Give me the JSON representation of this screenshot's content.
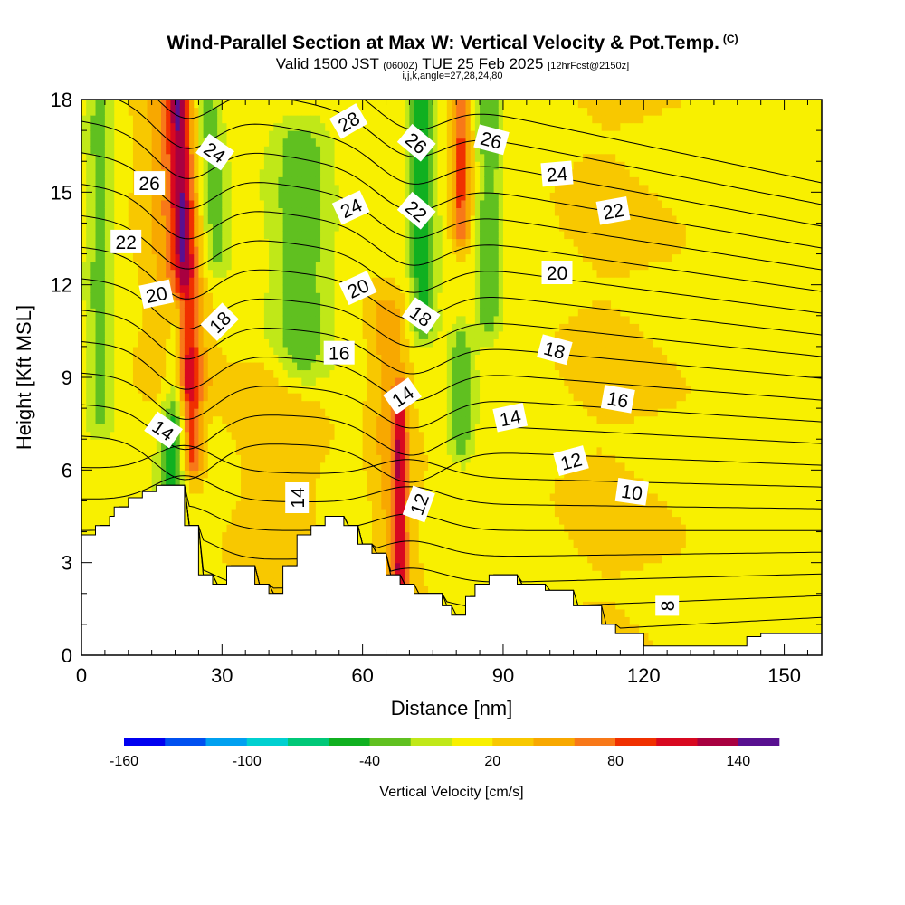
{
  "header": {
    "title": "Wind-Parallel Section at Max W: Vertical Velocity & Pot.Temp.",
    "title_suffix": "(C)",
    "valid_prefix": "Valid 1500 JST",
    "valid_z": "(0600Z)",
    "valid_date": "TUE 25 Feb 2025",
    "valid_fcst": "[12hrFcst@2150z]",
    "grid_info": "i,j,k,angle=27,28,24,80"
  },
  "chart_data": {
    "type": "heatmap",
    "xlabel": "Distance [nm]",
    "ylabel": "Height [Kft MSL]",
    "xlim": [
      0,
      158
    ],
    "ylim": [
      0,
      18
    ],
    "xticks": [
      0,
      30,
      60,
      90,
      120,
      150
    ],
    "yticks": [
      0,
      3,
      6,
      9,
      12,
      15,
      18
    ],
    "colorbar": {
      "label": "Vertical Velocity [cm/s]",
      "min": -160,
      "max": 160,
      "step": 20,
      "tick_values": [
        -160,
        -100,
        -40,
        20,
        80,
        140
      ],
      "tick_labels": [
        "-160",
        "-100",
        "-40",
        "20",
        "80",
        "140"
      ],
      "colors": [
        "#0000f0",
        "#0050f0",
        "#00a0f0",
        "#00d0d0",
        "#00c878",
        "#10b020",
        "#60c020",
        "#c0e818",
        "#f8f000",
        "#f8c800",
        "#f8a800",
        "#f87818",
        "#f03000",
        "#d80820",
        "#a80040",
        "#581090"
      ]
    },
    "terrain_kft": [
      [
        0,
        3.9
      ],
      [
        3,
        3.9
      ],
      [
        3,
        4.2
      ],
      [
        6,
        4.2
      ],
      [
        6,
        4.5
      ],
      [
        7,
        4.5
      ],
      [
        7,
        4.8
      ],
      [
        10,
        4.8
      ],
      [
        10,
        5.1
      ],
      [
        13,
        5.1
      ],
      [
        13,
        5.3
      ],
      [
        16,
        5.3
      ],
      [
        16,
        5.5
      ],
      [
        22,
        5.5
      ],
      [
        22,
        4.2
      ],
      [
        25,
        4.2
      ],
      [
        25,
        2.6
      ],
      [
        28,
        2.6
      ],
      [
        28,
        2.3
      ],
      [
        31,
        2.3
      ],
      [
        31,
        2.9
      ],
      [
        37,
        2.9
      ],
      [
        37,
        2.3
      ],
      [
        40,
        2.3
      ],
      [
        40,
        2.0
      ],
      [
        43,
        2.0
      ],
      [
        43,
        2.9
      ],
      [
        46,
        2.9
      ],
      [
        46,
        3.9
      ],
      [
        49,
        3.9
      ],
      [
        49,
        4.2
      ],
      [
        52,
        4.2
      ],
      [
        52,
        4.5
      ],
      [
        56,
        4.5
      ],
      [
        56,
        4.2
      ],
      [
        59,
        4.2
      ],
      [
        59,
        3.6
      ],
      [
        62,
        3.6
      ],
      [
        62,
        3.3
      ],
      [
        65,
        3.3
      ],
      [
        65,
        2.6
      ],
      [
        68,
        2.6
      ],
      [
        68,
        2.3
      ],
      [
        71,
        2.3
      ],
      [
        71,
        2.0
      ],
      [
        77,
        2.0
      ],
      [
        77,
        1.6
      ],
      [
        79,
        1.6
      ],
      [
        79,
        1.3
      ],
      [
        82,
        1.3
      ],
      [
        82,
        1.9
      ],
      [
        84,
        1.9
      ],
      [
        84,
        2.3
      ],
      [
        87,
        2.3
      ],
      [
        87,
        2.6
      ],
      [
        93,
        2.6
      ],
      [
        93,
        2.3
      ],
      [
        99,
        2.3
      ],
      [
        99,
        2.1
      ],
      [
        105,
        2.1
      ],
      [
        105,
        1.6
      ],
      [
        111,
        1.6
      ],
      [
        111,
        1.0
      ],
      [
        114,
        1.0
      ],
      [
        114,
        0.7
      ],
      [
        120,
        0.7
      ],
      [
        120,
        0.3
      ],
      [
        142,
        0.3
      ],
      [
        142,
        0.6
      ],
      [
        145,
        0.6
      ],
      [
        145,
        0.7
      ],
      [
        158,
        0.7
      ]
    ],
    "vertical_velocity_features": [
      {
        "x": 23.5,
        "y0": 6.5,
        "y1": 18,
        "value": 90,
        "width": 2.2,
        "tilt": -2.5
      },
      {
        "x": 22,
        "y0": 9.0,
        "y1": 18,
        "value": 60,
        "width": 6,
        "tilt": -3
      },
      {
        "x": 18.5,
        "y0": 4.5,
        "y1": 11,
        "value": -55,
        "width": 3,
        "tilt": 4
      },
      {
        "x": 28.5,
        "y0": 13,
        "y1": 18,
        "value": -40,
        "width": 3,
        "tilt": -3
      },
      {
        "x": 47,
        "y0": 9.5,
        "y1": 16.5,
        "value": -35,
        "width": 6,
        "tilt": 0
      },
      {
        "x": 42,
        "y0": 2,
        "y1": 9,
        "value": 35,
        "width": 10,
        "tilt": 0
      },
      {
        "x": 68,
        "y0": 2.8,
        "y1": 8,
        "value": 90,
        "width": 1.4,
        "tilt": 0
      },
      {
        "x": 67,
        "y0": 2.5,
        "y1": 11,
        "value": 45,
        "width": 4,
        "tilt": -2
      },
      {
        "x": 73,
        "y0": 11,
        "y1": 18,
        "value": -60,
        "width": 3,
        "tilt": -1
      },
      {
        "x": 81,
        "y0": 14,
        "y1": 18,
        "value": 80,
        "width": 2,
        "tilt": 0
      },
      {
        "x": 87,
        "y0": 11,
        "y1": 18,
        "value": -40,
        "width": 2.5,
        "tilt": 0
      },
      {
        "x": 81,
        "y0": 7,
        "y1": 10,
        "value": -35,
        "width": 3,
        "tilt": 0
      },
      {
        "x": 4,
        "y0": 8,
        "y1": 18,
        "value": -30,
        "width": 3,
        "tilt": 0
      },
      {
        "x": 108,
        "y0": 0.5,
        "y1": 18,
        "value": 22,
        "width": 14,
        "tilt": 0
      }
    ],
    "contour_levels_c": [
      8,
      9,
      10,
      11,
      12,
      13,
      14,
      15,
      16,
      17,
      18,
      19,
      20,
      21,
      22,
      23,
      24,
      25,
      26,
      27,
      28
    ],
    "contour_labels": [
      {
        "text": "26",
        "x": 14.5,
        "y": 15.3,
        "angle": 0
      },
      {
        "text": "22",
        "x": 9.5,
        "y": 13.4,
        "angle": 0
      },
      {
        "text": "20",
        "x": 16,
        "y": 11.7,
        "angle": -12
      },
      {
        "text": "14",
        "x": 17.5,
        "y": 7.3,
        "angle": 35
      },
      {
        "text": "24",
        "x": 28.5,
        "y": 16.3,
        "angle": 35
      },
      {
        "text": "18",
        "x": 29.5,
        "y": 10.8,
        "angle": -45
      },
      {
        "text": "14",
        "x": 46,
        "y": 5.1,
        "angle": -90
      },
      {
        "text": "28",
        "x": 57,
        "y": 17.3,
        "angle": -30
      },
      {
        "text": "24",
        "x": 57.5,
        "y": 14.5,
        "angle": -25
      },
      {
        "text": "20",
        "x": 59,
        "y": 11.9,
        "angle": -25
      },
      {
        "text": "16",
        "x": 55,
        "y": 9.8,
        "angle": 0
      },
      {
        "text": "26",
        "x": 71.5,
        "y": 16.6,
        "angle": 40
      },
      {
        "text": "22",
        "x": 71.5,
        "y": 14.4,
        "angle": 40
      },
      {
        "text": "18",
        "x": 72.5,
        "y": 11.0,
        "angle": 35
      },
      {
        "text": "14",
        "x": 68.5,
        "y": 8.4,
        "angle": -35
      },
      {
        "text": "12",
        "x": 72,
        "y": 4.9,
        "angle": -70
      },
      {
        "text": "26",
        "x": 87.5,
        "y": 16.7,
        "angle": 15
      },
      {
        "text": "14",
        "x": 91.5,
        "y": 7.7,
        "angle": -12
      },
      {
        "text": "24",
        "x": 101.5,
        "y": 15.6,
        "angle": -5
      },
      {
        "text": "20",
        "x": 101.5,
        "y": 12.4,
        "angle": 0
      },
      {
        "text": "18",
        "x": 101,
        "y": 9.9,
        "angle": 15
      },
      {
        "text": "12",
        "x": 104.5,
        "y": 6.3,
        "angle": -15
      },
      {
        "text": "10",
        "x": 117.5,
        "y": 5.3,
        "angle": 8
      },
      {
        "text": "22",
        "x": 113.5,
        "y": 14.4,
        "angle": -10
      },
      {
        "text": "16",
        "x": 114.5,
        "y": 8.3,
        "angle": 10
      },
      {
        "text": "8",
        "x": 125,
        "y": 1.6,
        "angle": -90
      }
    ]
  }
}
